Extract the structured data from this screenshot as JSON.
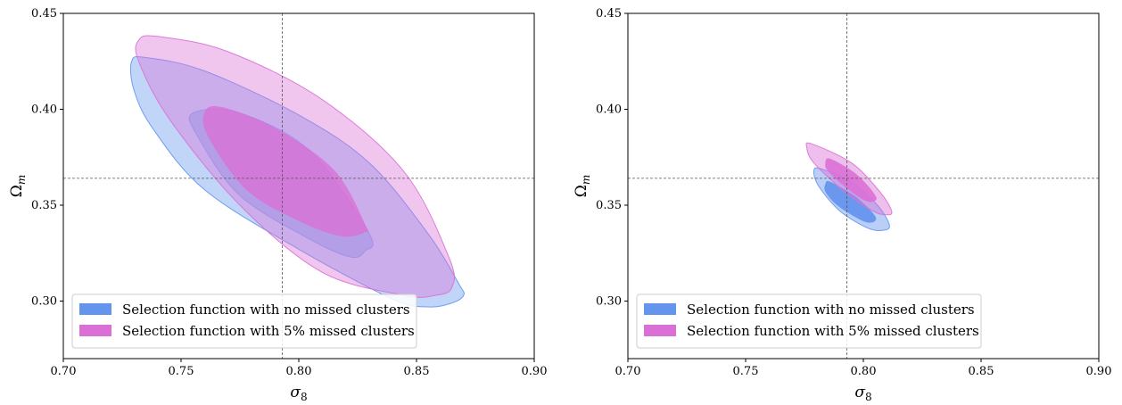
{
  "chart_data": [
    {
      "type": "contour",
      "xlabel": "σ8",
      "ylabel": "Ωm",
      "xlim": [
        0.7,
        0.9
      ],
      "ylim": [
        0.27,
        0.45
      ],
      "xticks": [
        "0.70",
        "0.75",
        "0.80",
        "0.85",
        "0.90"
      ],
      "yticks": [
        "0.30",
        "0.35",
        "0.40",
        "0.45"
      ],
      "reference": {
        "x": 0.793,
        "y": 0.364
      },
      "legend_position": "lower-left",
      "series": [
        {
          "name": "Selection function with no missed clusters",
          "color": "#6495ed",
          "regions": [
            {
              "level": "outer",
              "opacity": 0.4,
              "points": [
                [
                  0.729,
                  0.425
                ],
                [
                  0.735,
                  0.427
                ],
                [
                  0.76,
                  0.42
                ],
                [
                  0.8,
                  0.397
                ],
                [
                  0.83,
                  0.372
                ],
                [
                  0.855,
                  0.335
                ],
                [
                  0.868,
                  0.309
                ],
                [
                  0.87,
                  0.303
                ],
                [
                  0.865,
                  0.299
                ],
                [
                  0.855,
                  0.297
                ],
                [
                  0.84,
                  0.301
                ],
                [
                  0.8,
                  0.327
                ],
                [
                  0.76,
                  0.358
                ],
                [
                  0.738,
                  0.39
                ],
                [
                  0.73,
                  0.41
                ]
              ]
            },
            {
              "level": "inner",
              "opacity": 0.4,
              "points": [
                [
                  0.755,
                  0.398
                ],
                [
                  0.775,
                  0.398
                ],
                [
                  0.805,
                  0.378
                ],
                [
                  0.83,
                  0.335
                ],
                [
                  0.828,
                  0.326
                ],
                [
                  0.822,
                  0.323
                ],
                [
                  0.805,
                  0.332
                ],
                [
                  0.775,
                  0.355
                ],
                [
                  0.757,
                  0.386
                ]
              ]
            }
          ]
        },
        {
          "name": "Selection function with 5% missed clusters",
          "color": "#da70d6",
          "regions": [
            {
              "level": "outer",
              "opacity": 0.4,
              "points": [
                [
                  0.732,
                  0.436
                ],
                [
                  0.74,
                  0.438
                ],
                [
                  0.77,
                  0.43
                ],
                [
                  0.81,
                  0.405
                ],
                [
                  0.845,
                  0.367
                ],
                [
                  0.864,
                  0.322
                ],
                [
                  0.865,
                  0.307
                ],
                [
                  0.858,
                  0.303
                ],
                [
                  0.845,
                  0.303
                ],
                [
                  0.81,
                  0.315
                ],
                [
                  0.775,
                  0.35
                ],
                [
                  0.745,
                  0.395
                ],
                [
                  0.732,
                  0.425
                ]
              ]
            },
            {
              "level": "inner",
              "opacity": 0.8,
              "points": [
                [
                  0.76,
                  0.398
                ],
                [
                  0.767,
                  0.401
                ],
                [
                  0.79,
                  0.39
                ],
                [
                  0.815,
                  0.368
                ],
                [
                  0.828,
                  0.34
                ],
                [
                  0.828,
                  0.336
                ],
                [
                  0.818,
                  0.334
                ],
                [
                  0.8,
                  0.342
                ],
                [
                  0.778,
                  0.358
                ],
                [
                  0.762,
                  0.385
                ]
              ]
            }
          ]
        }
      ]
    },
    {
      "type": "contour",
      "xlabel": "σ8",
      "ylabel": "Ωm",
      "xlim": [
        0.7,
        0.9
      ],
      "ylim": [
        0.27,
        0.45
      ],
      "xticks": [
        "0.70",
        "0.75",
        "0.80",
        "0.85",
        "0.90"
      ],
      "yticks": [
        "0.30",
        "0.35",
        "0.40",
        "0.45"
      ],
      "reference": {
        "x": 0.793,
        "y": 0.364
      },
      "legend_position": "lower-left",
      "series": [
        {
          "name": "Selection function with no missed clusters",
          "color": "#6495ed",
          "regions": [
            {
              "level": "outer",
              "opacity": 0.45,
              "points": [
                [
                  0.779,
                  0.368
                ],
                [
                  0.782,
                  0.369
                ],
                [
                  0.795,
                  0.362
                ],
                [
                  0.806,
                  0.35
                ],
                [
                  0.811,
                  0.34
                ],
                [
                  0.809,
                  0.337
                ],
                [
                  0.802,
                  0.338
                ],
                [
                  0.79,
                  0.347
                ],
                [
                  0.781,
                  0.36
                ]
              ]
            },
            {
              "level": "inner",
              "opacity": 0.95,
              "points": [
                [
                  0.784,
                  0.361
                ],
                [
                  0.786,
                  0.362
                ],
                [
                  0.797,
                  0.354
                ],
                [
                  0.805,
                  0.344
                ],
                [
                  0.803,
                  0.341
                ],
                [
                  0.798,
                  0.343
                ],
                [
                  0.789,
                  0.35
                ],
                [
                  0.784,
                  0.357
                ]
              ]
            }
          ]
        },
        {
          "name": "Selection function with 5% missed clusters",
          "color": "#da70d6",
          "regions": [
            {
              "level": "outer",
              "opacity": 0.45,
              "points": [
                [
                  0.776,
                  0.38
                ],
                [
                  0.778,
                  0.382
                ],
                [
                  0.795,
                  0.372
                ],
                [
                  0.807,
                  0.357
                ],
                [
                  0.812,
                  0.347
                ],
                [
                  0.81,
                  0.345
                ],
                [
                  0.804,
                  0.347
                ],
                [
                  0.792,
                  0.357
                ],
                [
                  0.779,
                  0.372
                ]
              ]
            },
            {
              "level": "inner",
              "opacity": 0.9,
              "points": [
                [
                  0.784,
                  0.372
                ],
                [
                  0.786,
                  0.374
                ],
                [
                  0.797,
                  0.366
                ],
                [
                  0.805,
                  0.355
                ],
                [
                  0.804,
                  0.352
                ],
                [
                  0.8,
                  0.353
                ],
                [
                  0.792,
                  0.36
                ],
                [
                  0.785,
                  0.368
                ]
              ]
            }
          ]
        }
      ]
    }
  ]
}
